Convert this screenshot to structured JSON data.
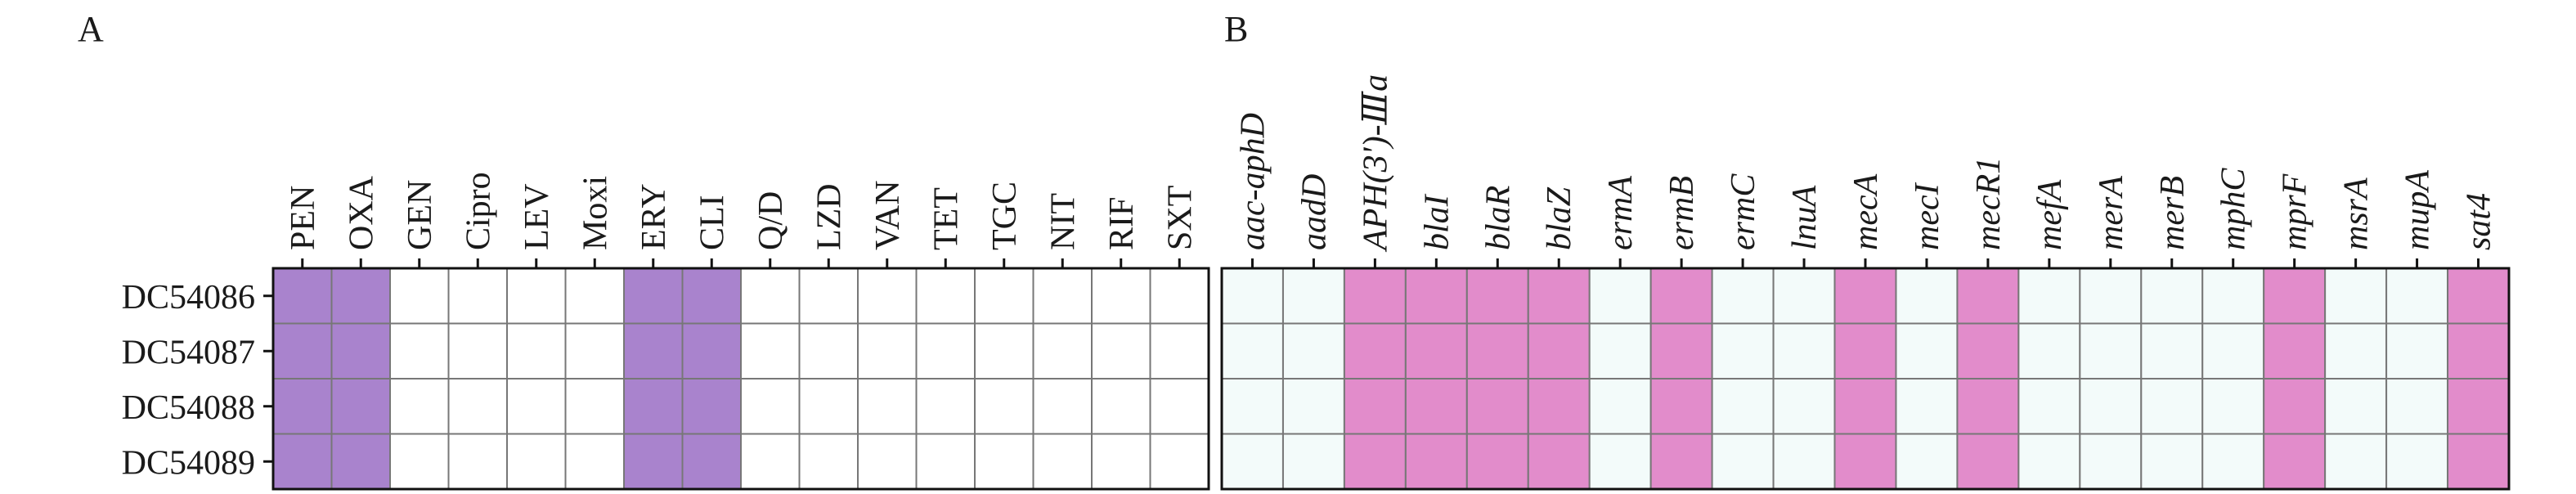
{
  "chart_data": [
    {
      "type": "heatmap",
      "panel_label": "A",
      "rows": [
        "DC54086",
        "DC54087",
        "DC54088",
        "DC54089"
      ],
      "columns": [
        "PEN",
        "OXA",
        "GEN",
        "Cipro",
        "LEV",
        "Moxi",
        "ERY",
        "CLI",
        "Q/D",
        "LZD",
        "VAN",
        "TET",
        "TGC",
        "NIT",
        "RIF",
        "SXT"
      ],
      "column_label_style": "normal",
      "colors": {
        "positive": "#a983cd",
        "negative": "#ffffff"
      },
      "values": [
        [
          1,
          1,
          0,
          0,
          0,
          0,
          1,
          1,
          0,
          0,
          0,
          0,
          0,
          0,
          0,
          0
        ],
        [
          1,
          1,
          0,
          0,
          0,
          0,
          1,
          1,
          0,
          0,
          0,
          0,
          0,
          0,
          0,
          0
        ],
        [
          1,
          1,
          0,
          0,
          0,
          0,
          1,
          1,
          0,
          0,
          0,
          0,
          0,
          0,
          0,
          0
        ],
        [
          1,
          1,
          0,
          0,
          0,
          0,
          1,
          1,
          0,
          0,
          0,
          0,
          0,
          0,
          0,
          0
        ]
      ]
    },
    {
      "type": "heatmap",
      "panel_label": "B",
      "rows": [
        "DC54086",
        "DC54087",
        "DC54088",
        "DC54089"
      ],
      "columns": [
        "aac-aphD",
        "aadD",
        "APH(3')-Ⅲa",
        "blaI",
        "blaR",
        "blaZ",
        "ermA",
        "ermB",
        "ermC",
        "lnuA",
        "mecA",
        "mecI",
        "mecR1",
        "mefA",
        "merA",
        "merB",
        "mphC",
        "mprF",
        "msrA",
        "mupA",
        "sat4"
      ],
      "column_label_style": "italic",
      "colors": {
        "positive": "#e28ccb",
        "negative": "#f3fbfa"
      },
      "values": [
        [
          0,
          0,
          1,
          1,
          1,
          1,
          0,
          1,
          0,
          0,
          1,
          0,
          1,
          0,
          0,
          0,
          0,
          1,
          0,
          0,
          1
        ],
        [
          0,
          0,
          1,
          1,
          1,
          1,
          0,
          1,
          0,
          0,
          1,
          0,
          1,
          0,
          0,
          0,
          0,
          1,
          0,
          0,
          1
        ],
        [
          0,
          0,
          1,
          1,
          1,
          1,
          0,
          1,
          0,
          0,
          1,
          0,
          1,
          0,
          0,
          0,
          0,
          1,
          0,
          0,
          1
        ],
        [
          0,
          0,
          1,
          1,
          1,
          1,
          0,
          1,
          0,
          0,
          1,
          0,
          1,
          0,
          0,
          0,
          0,
          1,
          0,
          0,
          1
        ]
      ]
    }
  ]
}
